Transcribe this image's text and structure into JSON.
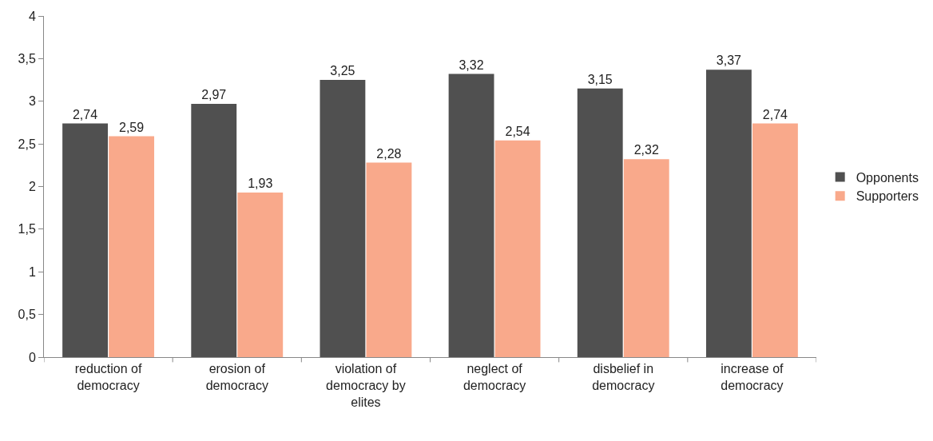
{
  "chart_data": {
    "type": "bar",
    "categories": [
      "reduction of democracy",
      "erosion of democracy",
      "violation of democracy by elites",
      "neglect of democracy",
      "disbelief in democracy",
      "increase of democracy"
    ],
    "series": [
      {
        "name": "Opponents",
        "color": "#505050",
        "values": [
          2.74,
          2.97,
          3.25,
          3.32,
          3.15,
          3.37
        ],
        "value_labels": [
          "2,74",
          "2,97",
          "3,25",
          "3,32",
          "3,15",
          "3,37"
        ]
      },
      {
        "name": "Supporters",
        "color": "#f9a98b",
        "values": [
          2.59,
          1.93,
          2.28,
          2.54,
          2.32,
          2.74
        ],
        "value_labels": [
          "2,59",
          "1,93",
          "2,28",
          "2,54",
          "2,32",
          "2,74"
        ]
      }
    ],
    "ylim": [
      0,
      4
    ],
    "yticks": [
      0,
      {
        "value": 0.5,
        "label": "0,5"
      },
      1,
      {
        "value": 1.5,
        "label": "1,5"
      },
      2,
      {
        "value": 2.5,
        "label": "2,5"
      },
      3,
      {
        "value": 3.5,
        "label": "3,5"
      },
      4
    ],
    "grid": false,
    "legend": "right"
  }
}
